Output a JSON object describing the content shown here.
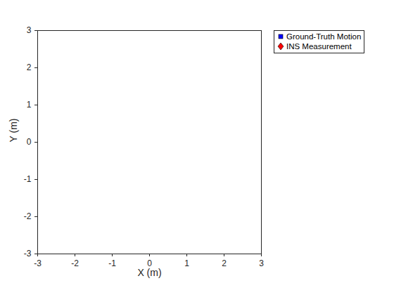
{
  "chart_data": {
    "type": "scatter",
    "xlabel": "X (m)",
    "ylabel": "Y (m)",
    "xlim": [
      -3,
      3
    ],
    "ylim": [
      -3,
      3
    ],
    "xticks": [
      -3,
      -2,
      -1,
      0,
      1,
      2,
      3
    ],
    "yticks": [
      -3,
      -2,
      -1,
      0,
      1,
      2,
      3
    ],
    "legend": "northeastoutside",
    "series": [
      {
        "name": "Ground-Truth Motion",
        "color": "#0000ff",
        "marker": "square",
        "x": [],
        "y": []
      },
      {
        "name": "INS Measurement",
        "color": "#ff0000",
        "marker": "diamond",
        "x": [],
        "y": []
      }
    ]
  }
}
